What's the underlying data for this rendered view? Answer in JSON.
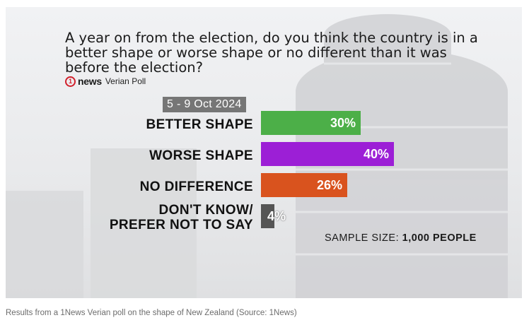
{
  "brand": {
    "logo_one": "1",
    "logo_news": "news",
    "poll_name": "Verian Poll"
  },
  "chart_data": {
    "type": "bar",
    "orientation": "horizontal",
    "title": "A year on from the election, do you think the country is in a better shape or worse shape or no different than it was before the election?",
    "subtitle": "5 - 9 Oct 2024",
    "categories": [
      "BETTER SHAPE",
      "WORSE SHAPE",
      "NO DIFFERENCE",
      "DON'T KNOW/ PREFER NOT TO SAY"
    ],
    "category_lines": [
      [
        "BETTER SHAPE"
      ],
      [
        "WORSE SHAPE"
      ],
      [
        "NO DIFFERENCE"
      ],
      [
        "DON'T KNOW/",
        "PREFER NOT TO SAY"
      ]
    ],
    "values": [
      30,
      40,
      26,
      4
    ],
    "value_labels": [
      "30%",
      "40%",
      "26%",
      "4%"
    ],
    "colors": [
      "#4caf48",
      "#9c1fd6",
      "#d9531e",
      "#555555"
    ],
    "xlim": [
      0,
      100
    ],
    "grid": false,
    "legend": "none",
    "annotation": {
      "label": "SAMPLE SIZE:",
      "value": "1,000 PEOPLE"
    }
  },
  "caption": "Results from a 1News Verian poll on the shape of New Zealand (Source: 1News)"
}
